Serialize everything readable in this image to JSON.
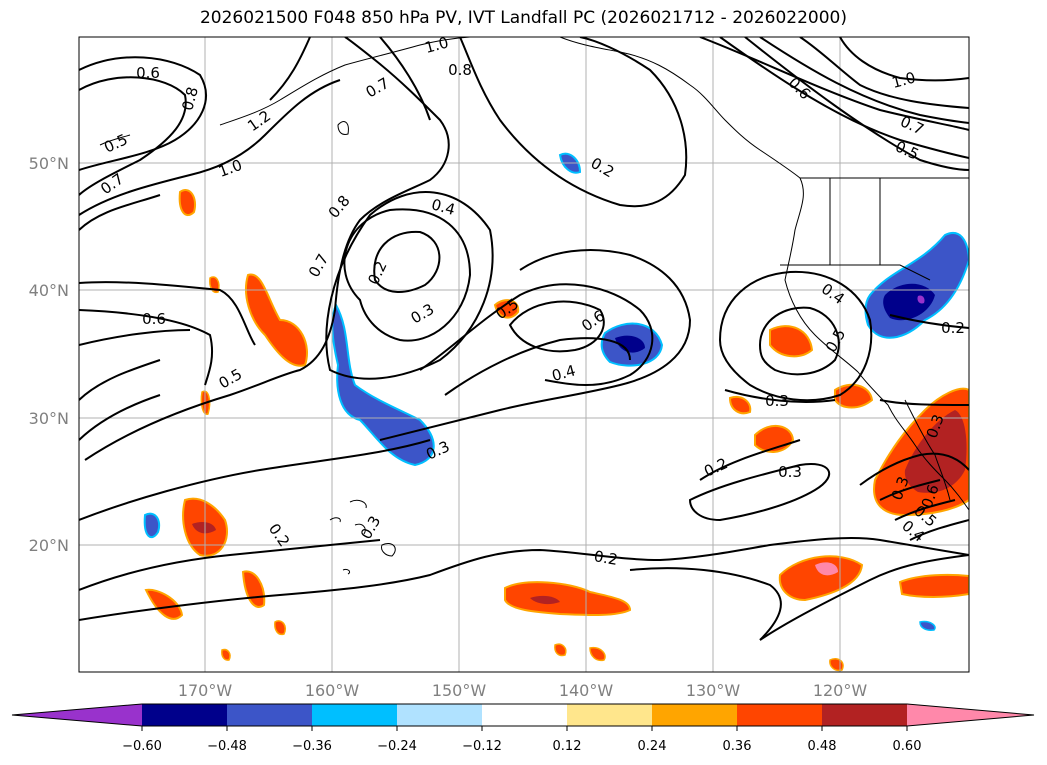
{
  "title": "2026021500 F048 850 hPa PV, IVT Landfall PC (2026021712 - 2026022000)",
  "map": {
    "lat_labels": [
      "50°N",
      "40°N",
      "30°N",
      "20°N"
    ],
    "lon_labels": [
      "170°W",
      "160°W",
      "150°W",
      "140°W",
      "130°W",
      "120°W"
    ],
    "contour_labels": [
      "0.6",
      "0.8",
      "1.2",
      "1.0",
      "0.5",
      "0.7",
      "1.0",
      "0.8",
      "0.7",
      "0.6",
      "1.0",
      "0.7",
      "0.5",
      "0.2",
      "0.4",
      "0.2",
      "0.8",
      "0.7",
      "0.3",
      "0.6",
      "0.5",
      "0.5",
      "0.6",
      "0.4",
      "0.4",
      "0.5",
      "0.2",
      "0.3",
      "0.3",
      "0.2",
      "0.3",
      "0.3",
      "0.2",
      "0.2",
      "0.3",
      "0.6",
      "0.5",
      "0.4",
      "0.3"
    ]
  },
  "colorbar": {
    "colors": [
      "#9932cc",
      "#00008b",
      "#3c55c8",
      "#00bfff",
      "#b0e2ff",
      "#ffffff",
      "#ffe68c",
      "#ffa500",
      "#ff4500",
      "#b22222",
      "#ff88aa"
    ],
    "ticks": [
      "−0.60",
      "−0.48",
      "−0.36",
      "−0.24",
      "−0.12",
      "0.12",
      "0.24",
      "0.36",
      "0.48",
      "0.60"
    ]
  }
}
